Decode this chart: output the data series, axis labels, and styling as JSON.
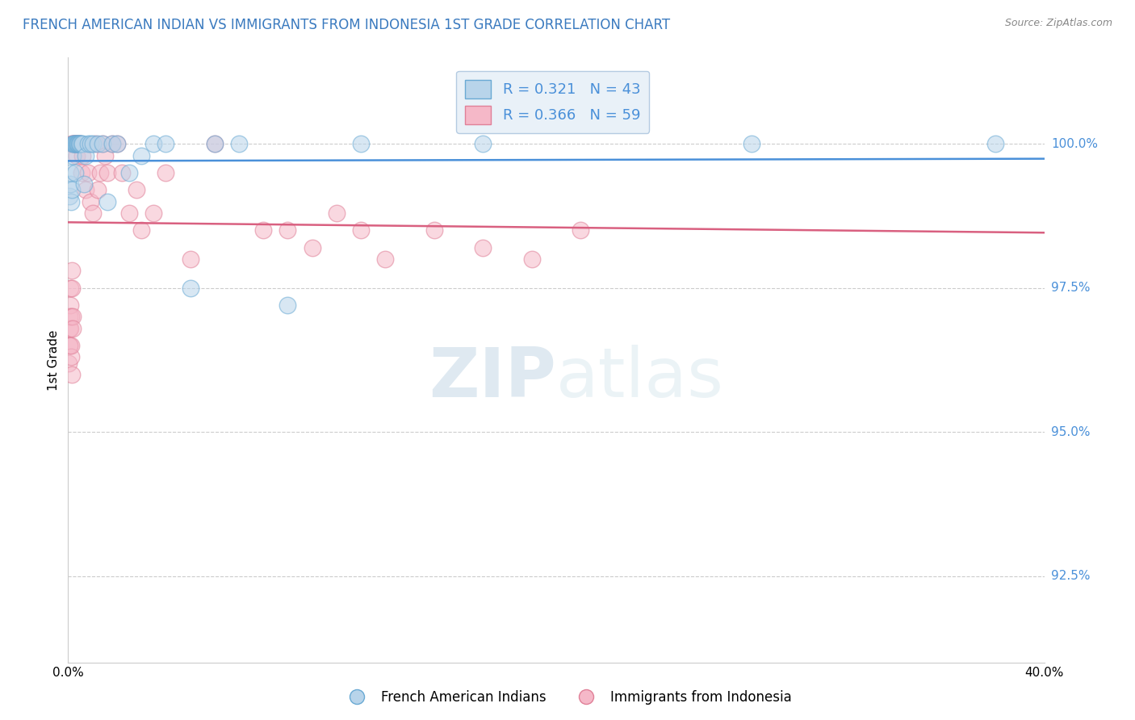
{
  "title": "FRENCH AMERICAN INDIAN VS IMMIGRANTS FROM INDONESIA 1ST GRADE CORRELATION CHART",
  "source": "Source: ZipAtlas.com",
  "ylabel": "1st Grade",
  "xlim": [
    0.0,
    40.0
  ],
  "ylim": [
    91.0,
    101.5
  ],
  "blue_label": "French American Indians",
  "pink_label": "Immigrants from Indonesia",
  "blue_R": 0.321,
  "blue_N": 43,
  "pink_R": 0.366,
  "pink_N": 59,
  "blue_fill_color": "#b8d4ea",
  "pink_fill_color": "#f5b8c8",
  "blue_edge_color": "#6aaad4",
  "pink_edge_color": "#e08098",
  "blue_line_color": "#4a90d9",
  "pink_line_color": "#d96080",
  "legend_box_color": "#e8f0f8",
  "legend_edge_color": "#b0c8e0",
  "watermark_color": "#d8eaf8",
  "ytick_color": "#4a90d9",
  "grid_color": "#cccccc",
  "title_color": "#3a7abf",
  "source_color": "#888888",
  "blue_scatter_x": [
    0.05,
    0.08,
    0.1,
    0.12,
    0.15,
    0.18,
    0.2,
    0.22,
    0.25,
    0.28,
    0.3,
    0.32,
    0.35,
    0.38,
    0.4,
    0.42,
    0.45,
    0.48,
    0.5,
    0.55,
    0.6,
    0.65,
    0.7,
    0.8,
    0.9,
    1.0,
    1.2,
    1.4,
    1.6,
    1.8,
    2.0,
    2.5,
    3.0,
    3.5,
    4.0,
    5.0,
    6.0,
    7.0,
    9.0,
    12.0,
    17.0,
    28.0,
    38.0
  ],
  "blue_scatter_y": [
    99.1,
    99.3,
    99.5,
    99.0,
    99.2,
    99.8,
    100.0,
    100.0,
    100.0,
    100.0,
    99.5,
    100.0,
    100.0,
    100.0,
    100.0,
    100.0,
    100.0,
    100.0,
    100.0,
    100.0,
    100.0,
    99.3,
    99.8,
    100.0,
    100.0,
    100.0,
    100.0,
    100.0,
    99.0,
    100.0,
    100.0,
    99.5,
    99.8,
    100.0,
    100.0,
    97.5,
    100.0,
    100.0,
    97.2,
    100.0,
    100.0,
    100.0,
    100.0
  ],
  "pink_scatter_x": [
    0.02,
    0.04,
    0.05,
    0.06,
    0.07,
    0.08,
    0.09,
    0.1,
    0.11,
    0.12,
    0.13,
    0.14,
    0.15,
    0.16,
    0.17,
    0.18,
    0.19,
    0.2,
    0.22,
    0.25,
    0.28,
    0.3,
    0.33,
    0.36,
    0.4,
    0.45,
    0.5,
    0.55,
    0.6,
    0.7,
    0.8,
    0.9,
    1.0,
    1.1,
    1.2,
    1.3,
    1.4,
    1.5,
    1.6,
    1.8,
    2.0,
    2.2,
    2.5,
    2.8,
    3.0,
    3.5,
    4.0,
    5.0,
    6.0,
    8.0,
    9.0,
    10.0,
    11.0,
    12.0,
    13.0,
    15.0,
    17.0,
    19.0,
    21.0
  ],
  "pink_scatter_y": [
    96.2,
    96.5,
    96.8,
    97.0,
    96.5,
    97.2,
    96.8,
    97.5,
    96.3,
    97.0,
    96.5,
    97.8,
    96.0,
    97.5,
    100.0,
    97.0,
    96.8,
    100.0,
    100.0,
    100.0,
    100.0,
    100.0,
    100.0,
    99.8,
    100.0,
    100.0,
    100.0,
    99.5,
    99.8,
    99.2,
    99.5,
    99.0,
    98.8,
    100.0,
    99.2,
    99.5,
    100.0,
    99.8,
    99.5,
    100.0,
    100.0,
    99.5,
    98.8,
    99.2,
    98.5,
    98.8,
    99.5,
    98.0,
    100.0,
    98.5,
    98.5,
    98.2,
    98.8,
    98.5,
    98.0,
    98.5,
    98.2,
    98.0,
    98.5
  ]
}
